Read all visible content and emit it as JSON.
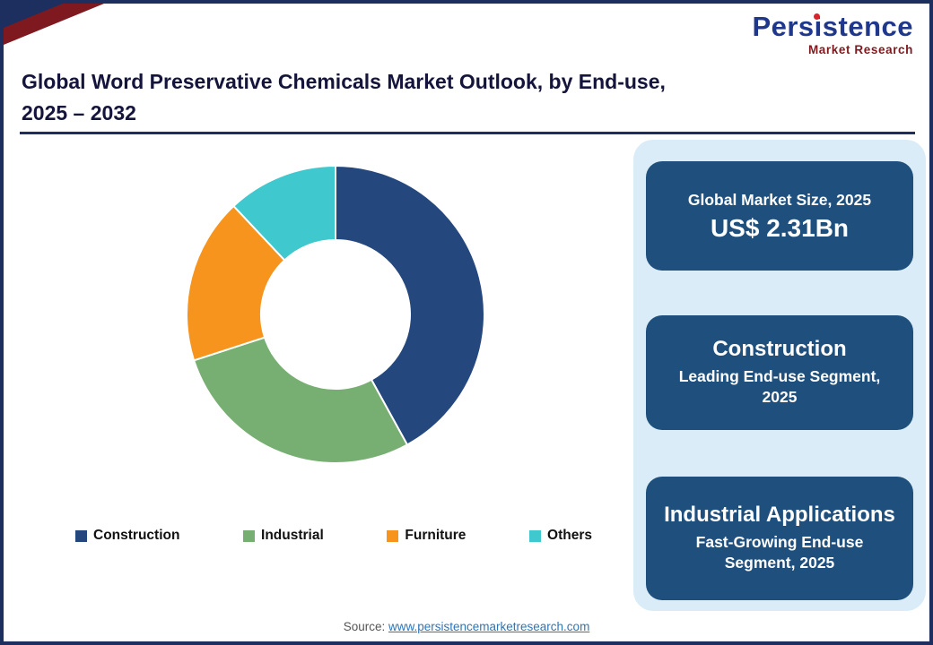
{
  "header": {
    "title_line1": "Global Word Preservative Chemicals Market Outlook, by End-use,",
    "title_line2": "2025 – 2032"
  },
  "logo": {
    "brand": "Persistence",
    "subtitle": "Market Research"
  },
  "chart_data": {
    "type": "pie",
    "style": "donut",
    "title": "Global Word Preservative Chemicals Market Outlook, by End-use, 2025 – 2032",
    "categories": [
      "Construction",
      "Industrial",
      "Furniture",
      "Others"
    ],
    "values": [
      42,
      28,
      18,
      12
    ],
    "colors": [
      "#24477D",
      "#77AE71",
      "#F6941E",
      "#3FC8CE"
    ],
    "legend_position": "bottom",
    "inner_radius_ratio": 0.5,
    "start_angle_deg": 0,
    "direction": "clockwise"
  },
  "panel": {
    "cards": [
      {
        "label": "Global Market Size, 2025",
        "value": "US$ 2.31Bn"
      },
      {
        "title": "Construction",
        "subtitle": "Leading End-use Segment, 2025"
      },
      {
        "title": "Industrial Applications",
        "subtitle": "Fast-Growing End-use Segment, 2025"
      }
    ]
  },
  "footer": {
    "source_label": "Source:",
    "source_link": "www.persistencemarketresearch.com"
  },
  "theme": {
    "border_navy": "#1C2F5E",
    "card_blue": "#1E4F7D",
    "panel_blue": "#D9ECF7",
    "logo_blue": "#20388C",
    "logo_maroon": "#7E1A1F",
    "accent_red": "#D6252E",
    "link_blue": "#2E75B6",
    "title_color": "#14143C"
  }
}
